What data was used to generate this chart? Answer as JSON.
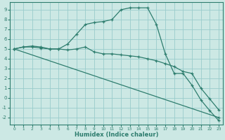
{
  "xlabel": "Humidex (Indice chaleur)",
  "background_color": "#cce8e4",
  "grid_color": "#99cccc",
  "line_color": "#2e7d6e",
  "xlim": [
    -0.5,
    23.5
  ],
  "ylim": [
    -2.7,
    9.8
  ],
  "xticks": [
    0,
    1,
    2,
    3,
    4,
    5,
    6,
    7,
    8,
    9,
    10,
    11,
    12,
    13,
    14,
    15,
    16,
    17,
    18,
    19,
    20,
    21,
    22,
    23
  ],
  "yticks": [
    -2,
    -1,
    0,
    1,
    2,
    3,
    4,
    5,
    6,
    7,
    8,
    9
  ],
  "series": [
    {
      "x": [
        0,
        1,
        2,
        3,
        4,
        5,
        6,
        7,
        8,
        9,
        10,
        11,
        12,
        13,
        14,
        15,
        16,
        17,
        18,
        19,
        20,
        21,
        22,
        23
      ],
      "y": [
        5,
        5.2,
        5.3,
        5.2,
        5,
        5,
        5.5,
        6.5,
        7.5,
        7.7,
        7.8,
        8.0,
        9.0,
        9.2,
        9.2,
        9.2,
        7.5,
        4.5,
        2.5,
        2.5,
        1.3,
        -0.2,
        -1.3,
        -2.3
      ]
    },
    {
      "x": [
        0,
        1,
        2,
        3,
        4,
        5,
        6,
        7,
        8,
        9,
        10,
        11,
        12,
        13,
        14,
        15,
        16,
        17,
        18,
        19,
        20,
        21,
        22,
        23
      ],
      "y": [
        5,
        5.2,
        5.2,
        5.1,
        5,
        5,
        4.9,
        5.0,
        5.2,
        4.7,
        4.5,
        4.5,
        4.4,
        4.3,
        4.2,
        4.0,
        3.8,
        3.5,
        3.2,
        2.7,
        2.5,
        1.0,
        -0.1,
        -1.2
      ]
    },
    {
      "x": [
        0,
        23
      ],
      "y": [
        5,
        -2
      ]
    }
  ]
}
